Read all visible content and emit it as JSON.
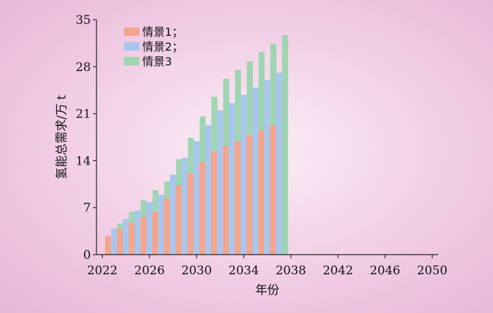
{
  "chart_data": {
    "type": "bar",
    "xlabel": "年份",
    "ylabel": "氢能总需求/万 t",
    "ylim": [
      0,
      35
    ],
    "yticks": [
      0,
      7,
      14,
      21,
      28,
      35
    ],
    "x": [
      2022,
      2023,
      2024,
      2025,
      2026,
      2027,
      2028,
      2029,
      2030,
      2031,
      2032,
      2033,
      2034,
      2035,
      2036,
      2037,
      2038,
      2039,
      2040,
      2041,
      2042,
      2043,
      2044,
      2045,
      2046,
      2047,
      2048,
      2049,
      2050
    ],
    "xtick_labels": [
      "2022",
      "2026",
      "2030",
      "2034",
      "2038",
      "2042",
      "2046",
      "2050"
    ],
    "legend_position": "top-left",
    "grid": false,
    "series": [
      {
        "name": "情景1；",
        "color": "#f4a58c",
        "values": [
          null,
          2.8,
          3.8,
          4.8,
          5.6,
          6.4,
          8.4,
          10.3,
          12.1,
          13.8,
          15.4,
          16.2,
          16.9,
          17.8,
          18.5,
          19.3,
          null,
          null,
          null,
          null,
          null,
          null,
          null,
          null,
          null,
          null,
          null,
          null,
          null
        ]
      },
      {
        "name": "情景2；",
        "color": "#a9c7ee",
        "values": [
          null,
          3.9,
          5.3,
          6.6,
          7.8,
          8.9,
          11.9,
          14.4,
          16.9,
          19.3,
          21.5,
          22.6,
          23.8,
          24.9,
          26.0,
          27.1,
          null,
          null,
          null,
          null,
          null,
          null,
          null,
          null,
          null,
          null,
          null,
          null,
          null
        ]
      },
      {
        "name": "情景3",
        "color": "#9fd5b2",
        "values": [
          null,
          4.6,
          6.4,
          8.1,
          9.6,
          10.9,
          14.2,
          17.4,
          20.6,
          23.5,
          26.2,
          27.5,
          28.8,
          30.2,
          31.4,
          32.7,
          null,
          null,
          null,
          null,
          null,
          null,
          null,
          null,
          null,
          null,
          null,
          null,
          null
        ]
      }
    ]
  }
}
